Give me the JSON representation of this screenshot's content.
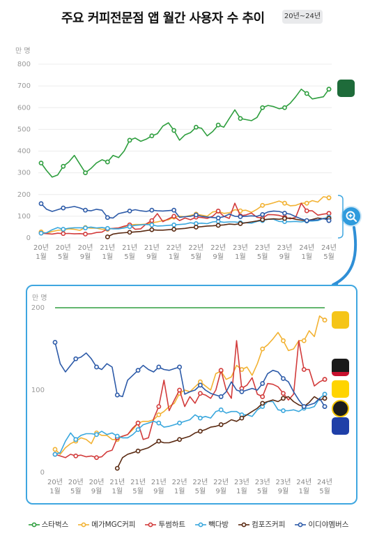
{
  "title": "주요 커피전문점 앱 월간 사용자 수 추이",
  "badge": "20년~24년",
  "chart_data": {
    "type": "line",
    "unit_label": "만 명",
    "x": [
      "20년 1월",
      "20년 2월",
      "20년 3월",
      "20년 4월",
      "20년 5월",
      "20년 6월",
      "20년 7월",
      "20년 8월",
      "20년 9월",
      "20년 10월",
      "20년 11월",
      "20년 12월",
      "21년 1월",
      "21년 2월",
      "21년 3월",
      "21년 4월",
      "21년 5월",
      "21년 6월",
      "21년 7월",
      "21년 8월",
      "21년 9월",
      "21년 10월",
      "21년 11월",
      "21년 12월",
      "22년 1월",
      "22년 2월",
      "22년 3월",
      "22년 4월",
      "22년 5월",
      "22년 6월",
      "22년 7월",
      "22년 8월",
      "22년 9월",
      "22년 10월",
      "22년 11월",
      "22년 12월",
      "23년 1월",
      "23년 2월",
      "23년 3월",
      "23년 4월",
      "23년 5월",
      "23년 6월",
      "23년 7월",
      "23년 8월",
      "23년 9월",
      "23년 10월",
      "23년 11월",
      "23년 12월",
      "24년 1월",
      "24년 2월",
      "24년 3월",
      "24년 4월",
      "24년 5월"
    ],
    "tick_labels": [
      [
        "20년",
        "1월"
      ],
      [
        "20년",
        "5월"
      ],
      [
        "20년",
        "9월"
      ],
      [
        "21년",
        "1월"
      ],
      [
        "21년",
        "5월"
      ],
      [
        "21년",
        "9월"
      ],
      [
        "22년",
        "1월"
      ],
      [
        "22년",
        "5월"
      ],
      [
        "22년",
        "9월"
      ],
      [
        "23년",
        "1월"
      ],
      [
        "23년",
        "5월"
      ],
      [
        "23년",
        "9월"
      ],
      [
        "24년",
        "1월"
      ],
      [
        "24년",
        "5월"
      ]
    ],
    "top_panel": {
      "ylim": [
        0,
        800
      ],
      "yticks": [
        0,
        100,
        200,
        300,
        400,
        500,
        600,
        700,
        800
      ]
    },
    "zoom_panel": {
      "ylim": [
        0,
        200
      ],
      "yticks": [
        0,
        100,
        200
      ]
    },
    "series": [
      {
        "name": "스타벅스",
        "color": "#2e9e3e",
        "values": [
          345,
          310,
          280,
          290,
          330,
          350,
          380,
          340,
          300,
          320,
          345,
          360,
          350,
          380,
          370,
          400,
          450,
          460,
          445,
          455,
          470,
          480,
          515,
          530,
          495,
          450,
          475,
          485,
          510,
          505,
          470,
          490,
          520,
          510,
          550,
          590,
          550,
          545,
          540,
          555,
          600,
          610,
          605,
          595,
          600,
          620,
          650,
          685,
          665,
          640,
          645,
          650,
          685
        ]
      },
      {
        "name": "메가MGC커피",
        "color": "#f2b233",
        "values": [
          28,
          22,
          30,
          35,
          38,
          42,
          40,
          35,
          48,
          45,
          45,
          40,
          40,
          44,
          46,
          52,
          60,
          62,
          62,
          64,
          70,
          74,
          80,
          84,
          96,
          100,
          98,
          104,
          110,
          105,
          100,
          120,
          123,
          113,
          116,
          130,
          125,
          128,
          118,
          132,
          150,
          155,
          162,
          170,
          160,
          148,
          150,
          160,
          160,
          172,
          165,
          190,
          185
        ]
      },
      {
        "name": "투썸하트",
        "color": "#d23b3b",
        "values": [
          22,
          20,
          18,
          22,
          20,
          21,
          19,
          20,
          18,
          19,
          25,
          27,
          42,
          44,
          46,
          54,
          60,
          40,
          42,
          65,
          80,
          112,
          75,
          88,
          100,
          80,
          92,
          84,
          96,
          94,
          90,
          100,
          124,
          100,
          90,
          160,
          102,
          106,
          115,
          95,
          92,
          108,
          107,
          104,
          96,
          88,
          95,
          160,
          125,
          125,
          105,
          110,
          113
        ]
      },
      {
        "name": "빽다방",
        "color": "#39a7dd",
        "values": [
          22,
          24,
          38,
          48,
          40,
          45,
          47,
          47,
          46,
          50,
          46,
          48,
          44,
          42,
          42,
          46,
          52,
          58,
          60,
          62,
          60,
          55,
          56,
          58,
          60,
          62,
          64,
          70,
          66,
          68,
          66,
          74,
          76,
          72,
          74,
          74,
          70,
          70,
          68,
          76,
          80,
          86,
          86,
          76,
          75,
          75,
          76,
          74,
          78,
          78,
          80,
          90,
          95
        ]
      },
      {
        "name": "컴포즈커피",
        "color": "#5a2a12",
        "values": [
          null,
          null,
          null,
          null,
          null,
          null,
          null,
          null,
          null,
          null,
          null,
          null,
          5,
          18,
          22,
          24,
          26,
          28,
          30,
          34,
          38,
          36,
          36,
          38,
          40,
          42,
          44,
          48,
          50,
          52,
          55,
          56,
          58,
          60,
          64,
          62,
          66,
          70,
          74,
          78,
          84,
          86,
          88,
          86,
          90,
          92,
          86,
          82,
          80,
          85,
          92,
          88,
          90
        ]
      },
      {
        "name": "이디야멤버스",
        "color": "#2c5aa8",
        "values": [
          158,
          132,
          122,
          130,
          138,
          140,
          145,
          138,
          128,
          125,
          132,
          128,
          94,
          92,
          112,
          118,
          124,
          130,
          125,
          122,
          128,
          125,
          124,
          126,
          128,
          95,
          98,
          100,
          106,
          100,
          96,
          94,
          92,
          98,
          110,
          100,
          98,
          100,
          102,
          100,
          108,
          120,
          124,
          122,
          114,
          110,
          98,
          88,
          80,
          82,
          84,
          90,
          80
        ]
      }
    ]
  },
  "legend": [
    "스타벅스",
    "메가MGC커피",
    "투썸하트",
    "빽다방",
    "컴포즈커피",
    "이디야멤버스"
  ]
}
